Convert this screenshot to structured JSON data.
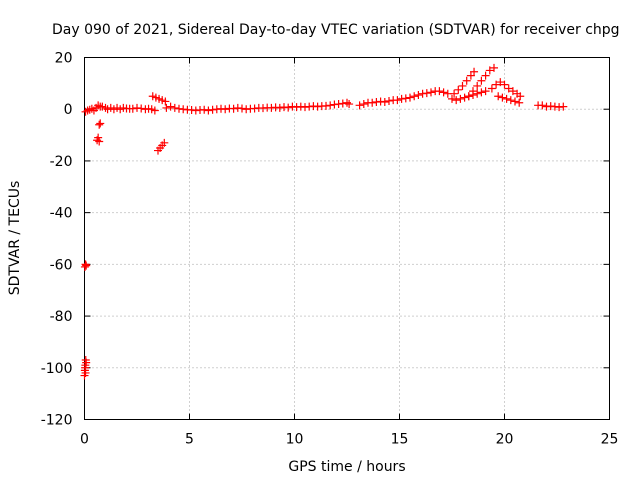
{
  "chart_data": {
    "type": "scatter",
    "title": "Day 090 of 2021, Sidereal Day-to-day VTEC variation (SDTVAR) for receiver chpg",
    "xlabel": "GPS time / hours",
    "ylabel": "SDTVAR / TECUs",
    "xlim": [
      0,
      25
    ],
    "ylim": [
      -120,
      20
    ],
    "xticks": [
      0,
      5,
      10,
      15,
      20,
      25
    ],
    "yticks": [
      -120,
      -100,
      -80,
      -60,
      -40,
      -20,
      0,
      20
    ],
    "grid": true,
    "marker": "+",
    "series": [
      {
        "name": "SDTVAR",
        "color": "#ff0000",
        "points": [
          [
            0.0,
            -103
          ],
          [
            0.02,
            -101
          ],
          [
            0.04,
            -99
          ],
          [
            0.06,
            -97
          ],
          [
            0.05,
            -102
          ],
          [
            0.03,
            -100
          ],
          [
            0.08,
            -98
          ],
          [
            0.02,
            -61
          ],
          [
            0.05,
            -60
          ],
          [
            0.08,
            -60.5
          ],
          [
            0.05,
            -1
          ],
          [
            0.15,
            -0.5
          ],
          [
            0.25,
            -0.2
          ],
          [
            0.35,
            0.2
          ],
          [
            0.45,
            -0.5
          ],
          [
            0.55,
            0.5
          ],
          [
            0.65,
            1.5
          ],
          [
            0.75,
            1
          ],
          [
            0.6,
            -12
          ],
          [
            0.65,
            -11
          ],
          [
            0.7,
            -12.5
          ],
          [
            0.7,
            -6
          ],
          [
            0.75,
            -5.5
          ],
          [
            0.85,
            1
          ],
          [
            1.0,
            0.5
          ],
          [
            1.1,
            0
          ],
          [
            1.25,
            0.5
          ],
          [
            1.4,
            0
          ],
          [
            1.55,
            0.5
          ],
          [
            1.7,
            0
          ],
          [
            1.85,
            0.5
          ],
          [
            2.0,
            0.3
          ],
          [
            2.15,
            0.2
          ],
          [
            2.3,
            0.2
          ],
          [
            2.5,
            0.5
          ],
          [
            2.7,
            0.3
          ],
          [
            2.9,
            0
          ],
          [
            3.05,
            0.2
          ],
          [
            3.2,
            0
          ],
          [
            3.35,
            -0.5
          ],
          [
            3.25,
            5
          ],
          [
            3.4,
            4.5
          ],
          [
            3.55,
            4
          ],
          [
            3.7,
            3.5
          ],
          [
            3.85,
            3
          ],
          [
            3.5,
            -16
          ],
          [
            3.6,
            -15
          ],
          [
            3.7,
            -14
          ],
          [
            3.8,
            -13
          ],
          [
            3.9,
            0.5
          ],
          [
            4.1,
            1
          ],
          [
            4.3,
            0.5
          ],
          [
            4.5,
            0.2
          ],
          [
            4.7,
            0
          ],
          [
            4.9,
            -0.2
          ],
          [
            5.1,
            -0.3
          ],
          [
            5.3,
            -0.5
          ],
          [
            5.5,
            -0.3
          ],
          [
            5.7,
            -0.2
          ],
          [
            5.9,
            -0.5
          ],
          [
            6.1,
            -0.2
          ],
          [
            6.3,
            0
          ],
          [
            6.5,
            0.2
          ],
          [
            6.7,
            0
          ],
          [
            6.9,
            0.3
          ],
          [
            7.1,
            0.2
          ],
          [
            7.3,
            0.5
          ],
          [
            7.5,
            0.3
          ],
          [
            7.7,
            0
          ],
          [
            7.9,
            0.2
          ],
          [
            8.1,
            0.3
          ],
          [
            8.3,
            0.5
          ],
          [
            8.5,
            0.4
          ],
          [
            8.7,
            0.6
          ],
          [
            8.9,
            0.5
          ],
          [
            9.1,
            0.7
          ],
          [
            9.3,
            0.5
          ],
          [
            9.5,
            0.8
          ],
          [
            9.7,
            0.6
          ],
          [
            9.9,
            1
          ],
          [
            10.1,
            0.8
          ],
          [
            10.3,
            1
          ],
          [
            10.5,
            0.8
          ],
          [
            10.7,
            1
          ],
          [
            10.9,
            1.2
          ],
          [
            11.1,
            1
          ],
          [
            11.3,
            1.2
          ],
          [
            11.5,
            1.3
          ],
          [
            11.7,
            1.5
          ],
          [
            11.9,
            1.8
          ],
          [
            12.1,
            2
          ],
          [
            12.3,
            2.2
          ],
          [
            12.5,
            2.5
          ],
          [
            12.6,
            2
          ],
          [
            13.1,
            1.5
          ],
          [
            13.3,
            2
          ],
          [
            13.5,
            2.5
          ],
          [
            13.7,
            2.5
          ],
          [
            13.9,
            2.8
          ],
          [
            14.1,
            3
          ],
          [
            14.3,
            2.8
          ],
          [
            14.5,
            3.2
          ],
          [
            14.7,
            3.5
          ],
          [
            14.9,
            3.5
          ],
          [
            15.1,
            4
          ],
          [
            15.3,
            4.2
          ],
          [
            15.5,
            4.5
          ],
          [
            15.7,
            5
          ],
          [
            15.9,
            5.5
          ],
          [
            16.1,
            6
          ],
          [
            16.3,
            6.2
          ],
          [
            16.5,
            6.5
          ],
          [
            16.7,
            7
          ],
          [
            16.9,
            7
          ],
          [
            17.1,
            6.5
          ],
          [
            17.3,
            6
          ],
          [
            17.5,
            4
          ],
          [
            17.7,
            3.5
          ],
          [
            17.9,
            4
          ],
          [
            18.1,
            4.5
          ],
          [
            18.3,
            5
          ],
          [
            18.5,
            5.5
          ],
          [
            18.7,
            6
          ],
          [
            18.9,
            6.5
          ],
          [
            19.1,
            7
          ],
          [
            17.6,
            6
          ],
          [
            17.8,
            7.5
          ],
          [
            18.0,
            9
          ],
          [
            18.2,
            11
          ],
          [
            18.4,
            13
          ],
          [
            18.55,
            14.5
          ],
          [
            18.3,
            5
          ],
          [
            18.5,
            7
          ],
          [
            18.7,
            9
          ],
          [
            18.9,
            11
          ],
          [
            19.1,
            13
          ],
          [
            19.3,
            15
          ],
          [
            19.5,
            16
          ],
          [
            19.4,
            8
          ],
          [
            19.6,
            9.5
          ],
          [
            19.8,
            10.5
          ],
          [
            20.0,
            9.5
          ],
          [
            20.2,
            8
          ],
          [
            20.4,
            7
          ],
          [
            20.6,
            6
          ],
          [
            20.75,
            5
          ],
          [
            19.7,
            5
          ],
          [
            19.9,
            4.5
          ],
          [
            20.1,
            4
          ],
          [
            20.3,
            3.5
          ],
          [
            20.5,
            3
          ],
          [
            20.7,
            2.5
          ],
          [
            21.6,
            1.5
          ],
          [
            21.8,
            1.5
          ],
          [
            22.0,
            1
          ],
          [
            22.2,
            1.2
          ],
          [
            22.4,
            1
          ],
          [
            22.6,
            0.8
          ],
          [
            22.8,
            1
          ]
        ]
      }
    ]
  }
}
